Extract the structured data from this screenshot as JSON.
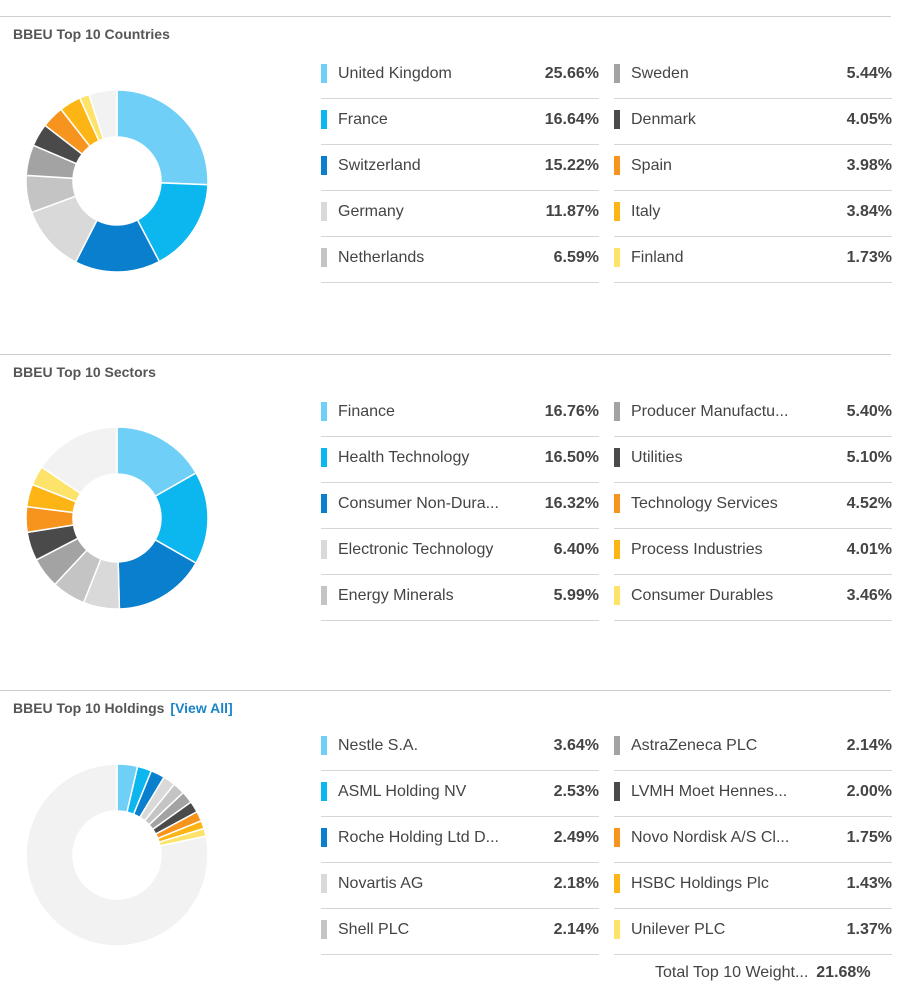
{
  "chart_data": [
    {
      "type": "pie",
      "title": "BBEU Top 10 Countries",
      "categories": [
        "United Kingdom",
        "France",
        "Switzerland",
        "Germany",
        "Netherlands",
        "Sweden",
        "Denmark",
        "Spain",
        "Italy",
        "Finland"
      ],
      "values": [
        25.66,
        16.64,
        15.22,
        11.87,
        6.59,
        5.44,
        4.05,
        3.98,
        3.84,
        1.73
      ],
      "labels": [
        "25.66%",
        "16.64%",
        "15.22%",
        "11.87%",
        "6.59%",
        "5.44%",
        "4.05%",
        "3.98%",
        "3.84%",
        "1.73%"
      ],
      "colors": [
        "#6fcff7",
        "#0cb6ef",
        "#0a7fcd",
        "#d9d9d9",
        "#c4c4c4",
        "#a3a3a3",
        "#4a4a4a",
        "#f7941d",
        "#fdb515",
        "#fde36a"
      ],
      "remainder_color": "#f2f2f2"
    },
    {
      "type": "pie",
      "title": "BBEU Top 10 Sectors",
      "categories": [
        "Finance",
        "Health Technology",
        "Consumer Non-Dura...",
        "Electronic Technology",
        "Energy Minerals",
        "Producer Manufactu...",
        "Utilities",
        "Technology Services",
        "Process Industries",
        "Consumer Durables"
      ],
      "values": [
        16.76,
        16.5,
        16.32,
        6.4,
        5.99,
        5.4,
        5.1,
        4.52,
        4.01,
        3.46
      ],
      "labels": [
        "16.76%",
        "16.50%",
        "16.32%",
        "6.40%",
        "5.99%",
        "5.40%",
        "5.10%",
        "4.52%",
        "4.01%",
        "3.46%"
      ],
      "colors": [
        "#6fcff7",
        "#0cb6ef",
        "#0a7fcd",
        "#d9d9d9",
        "#c4c4c4",
        "#a3a3a3",
        "#4a4a4a",
        "#f7941d",
        "#fdb515",
        "#fde36a"
      ],
      "remainder_color": "#f2f2f2"
    },
    {
      "type": "pie",
      "title": "BBEU Top 10 Holdings",
      "link_label": "[View All]",
      "categories": [
        "Nestle S.A.",
        "ASML Holding NV",
        "Roche Holding Ltd D...",
        "Novartis AG",
        "Shell PLC",
        "AstraZeneca PLC",
        "LVMH Moet Hennes...",
        "Novo Nordisk A/S Cl...",
        "HSBC Holdings Plc",
        "Unilever PLC"
      ],
      "values": [
        3.64,
        2.53,
        2.49,
        2.18,
        2.14,
        2.14,
        2.0,
        1.75,
        1.43,
        1.37
      ],
      "labels": [
        "3.64%",
        "2.53%",
        "2.49%",
        "2.18%",
        "2.14%",
        "2.14%",
        "2.00%",
        "1.75%",
        "1.43%",
        "1.37%"
      ],
      "colors": [
        "#6fcff7",
        "#0cb6ef",
        "#0a7fcd",
        "#d9d9d9",
        "#c4c4c4",
        "#a3a3a3",
        "#4a4a4a",
        "#f7941d",
        "#fdb515",
        "#fde36a"
      ],
      "remainder_color": "#f2f2f2",
      "total_label": "Total Top 10 Weight...",
      "total_value": "21.68%"
    }
  ]
}
